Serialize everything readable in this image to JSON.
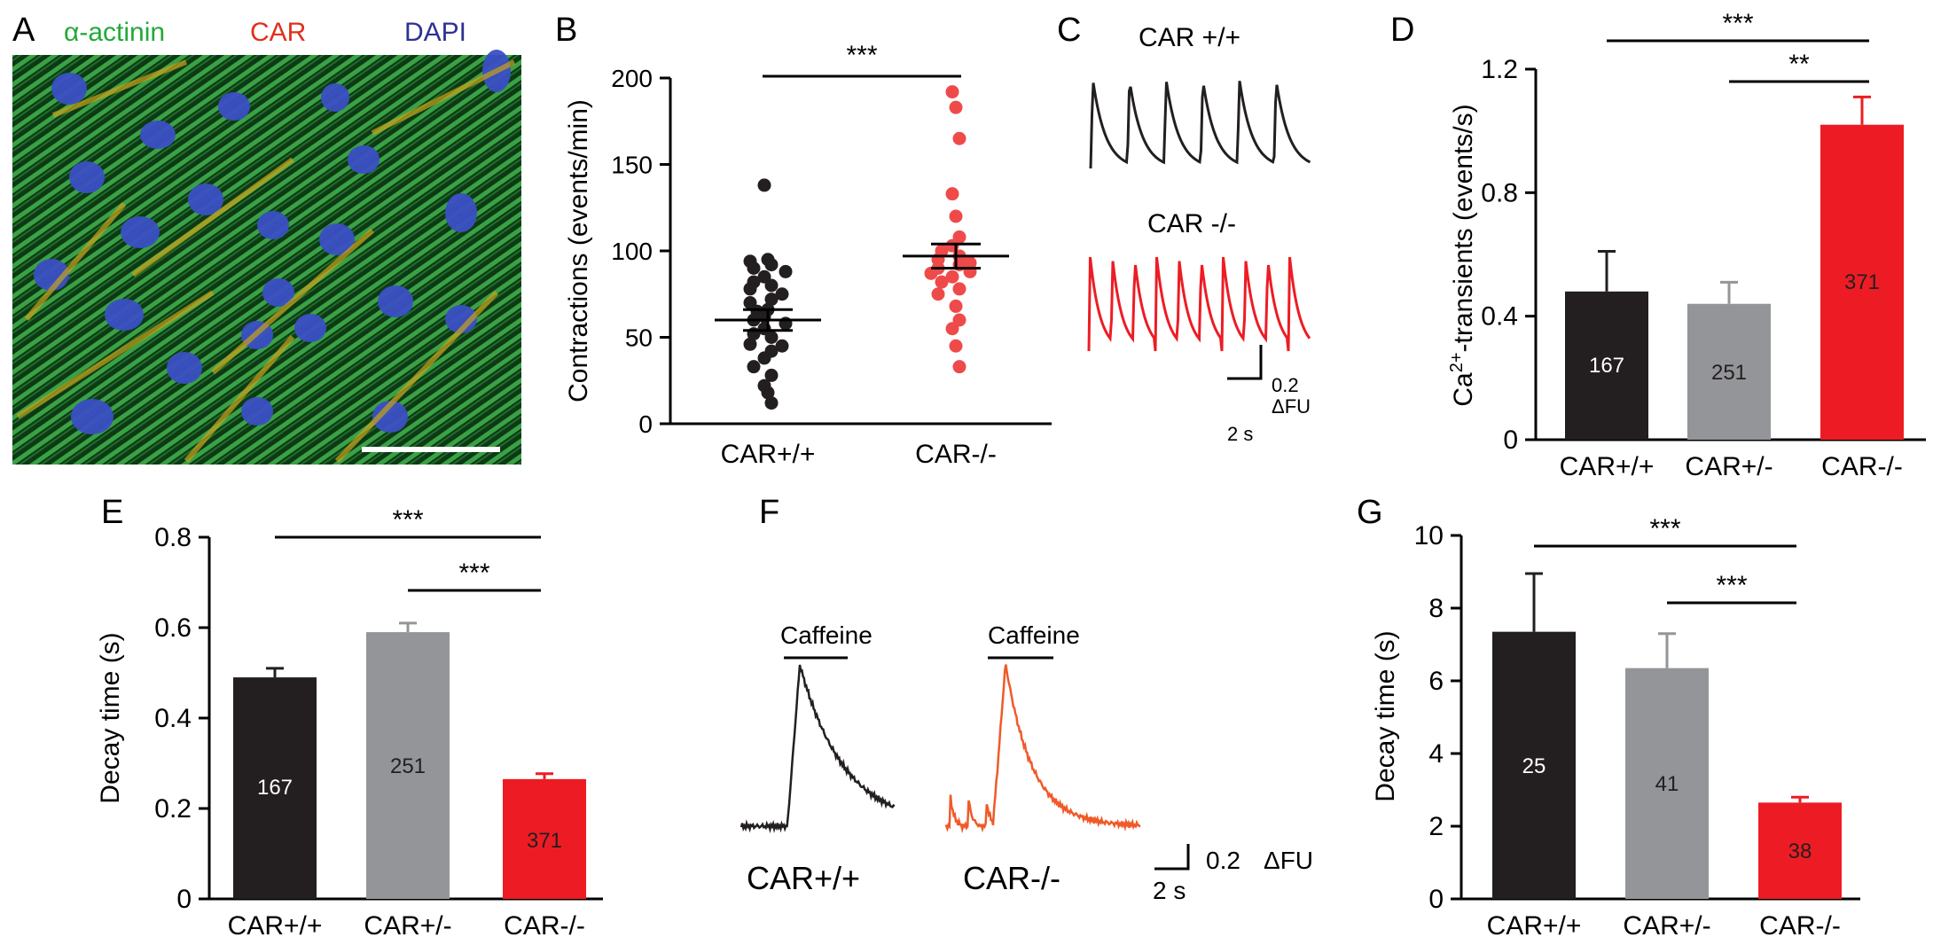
{
  "panel_letters": {
    "A": "A",
    "B": "B",
    "C": "C",
    "D": "D",
    "E": "E",
    "F": "F",
    "G": "G"
  },
  "colors": {
    "wt": "#231f20",
    "het": "#939598",
    "ko": "#ed1c24",
    "ko_dots": "#ef4a4a",
    "ko_trace_f": "#f05a28",
    "actinin": "#22a93a",
    "car": "#e0301e",
    "dapi": "#2e3192"
  },
  "panel_a": {
    "stain_actinin": "α-actinin",
    "stain_car": "CAR",
    "stain_dapi": "DAPI",
    "image_desc": "immunofluorescence-cardiomyocytes"
  },
  "panel_c": {
    "label_wt": "CAR +/+",
    "label_ko": "CAR -/-",
    "scale_v": "0.2",
    "scale_unit": "ΔFU",
    "scale_t": "2 s"
  },
  "panel_f": {
    "caffeine": "Caffeine",
    "label_wt": "CAR+/+",
    "label_ko": "CAR-/-",
    "scale_v": "0.2",
    "scale_unit": "ΔFU",
    "scale_t": "2 s"
  },
  "chart_data": [
    {
      "id": "B",
      "type": "scatter",
      "ylabel": "Contractions (events/min)",
      "ylim": [
        0,
        200
      ],
      "yticks": [
        "0",
        "50",
        "100",
        "150",
        "200"
      ],
      "categories": [
        "CAR+/+",
        "CAR-/-"
      ],
      "series": [
        {
          "values": [
            138,
            95,
            92,
            94,
            90,
            88,
            85,
            82,
            80,
            78,
            75,
            72,
            70,
            66,
            65,
            62,
            60,
            58,
            55,
            52,
            50,
            46,
            45,
            42,
            38,
            33,
            28,
            22,
            18,
            12
          ],
          "mean": 60,
          "sem": 6
        },
        {
          "values": [
            192,
            183,
            165,
            133,
            120,
            108,
            103,
            100,
            97,
            95,
            93,
            92,
            90,
            88,
            87,
            85,
            82,
            78,
            75,
            68,
            60,
            55,
            45,
            33
          ],
          "mean": 97,
          "sem": 7
        }
      ],
      "significance": [
        {
          "from": 0,
          "to": 1,
          "label": "***"
        }
      ]
    },
    {
      "id": "D",
      "type": "bar",
      "ylabel_main": "Ca",
      "ylabel_sup": "2+",
      "ylabel_rest": "-transients (events/s)",
      "ylim": [
        0,
        1.2
      ],
      "yticks": [
        "0",
        "0.4",
        "0.8",
        "1.2"
      ],
      "categories": [
        "CAR+/+",
        "CAR+/-",
        "CAR-/-"
      ],
      "values": [
        0.48,
        0.44,
        1.02
      ],
      "errors": [
        0.13,
        0.07,
        0.09
      ],
      "n_labels": [
        "167",
        "251",
        "371"
      ],
      "significance": [
        {
          "from": 0,
          "to": 2,
          "label": "***"
        },
        {
          "from": 1,
          "to": 2,
          "label": "**"
        }
      ]
    },
    {
      "id": "E",
      "type": "bar",
      "ylabel": "Decay time (s)",
      "ylim": [
        0,
        0.8
      ],
      "yticks": [
        "0",
        "0.2",
        "0.4",
        "0.6",
        "0.8"
      ],
      "categories": [
        "CAR+/+",
        "CAR+/-",
        "CAR-/-"
      ],
      "values": [
        0.49,
        0.59,
        0.265
      ],
      "errors": [
        0.02,
        0.02,
        0.012
      ],
      "n_labels": [
        "167",
        "251",
        "371"
      ],
      "significance": [
        {
          "from": 0,
          "to": 2,
          "label": "***"
        },
        {
          "from": 1,
          "to": 2,
          "label": "***"
        }
      ]
    },
    {
      "id": "G",
      "type": "bar",
      "ylabel": "Decay time (s)",
      "ylim": [
        0,
        10
      ],
      "yticks": [
        "0",
        "2",
        "4",
        "6",
        "8",
        "10"
      ],
      "categories": [
        "CAR+/+",
        "CAR+/-",
        "CAR-/-"
      ],
      "values": [
        7.35,
        6.35,
        2.65
      ],
      "errors": [
        1.6,
        0.95,
        0.15
      ],
      "n_labels": [
        "25",
        "41",
        "38"
      ],
      "significance": [
        {
          "from": 0,
          "to": 2,
          "label": "***"
        },
        {
          "from": 1,
          "to": 2,
          "label": "***"
        }
      ]
    }
  ]
}
